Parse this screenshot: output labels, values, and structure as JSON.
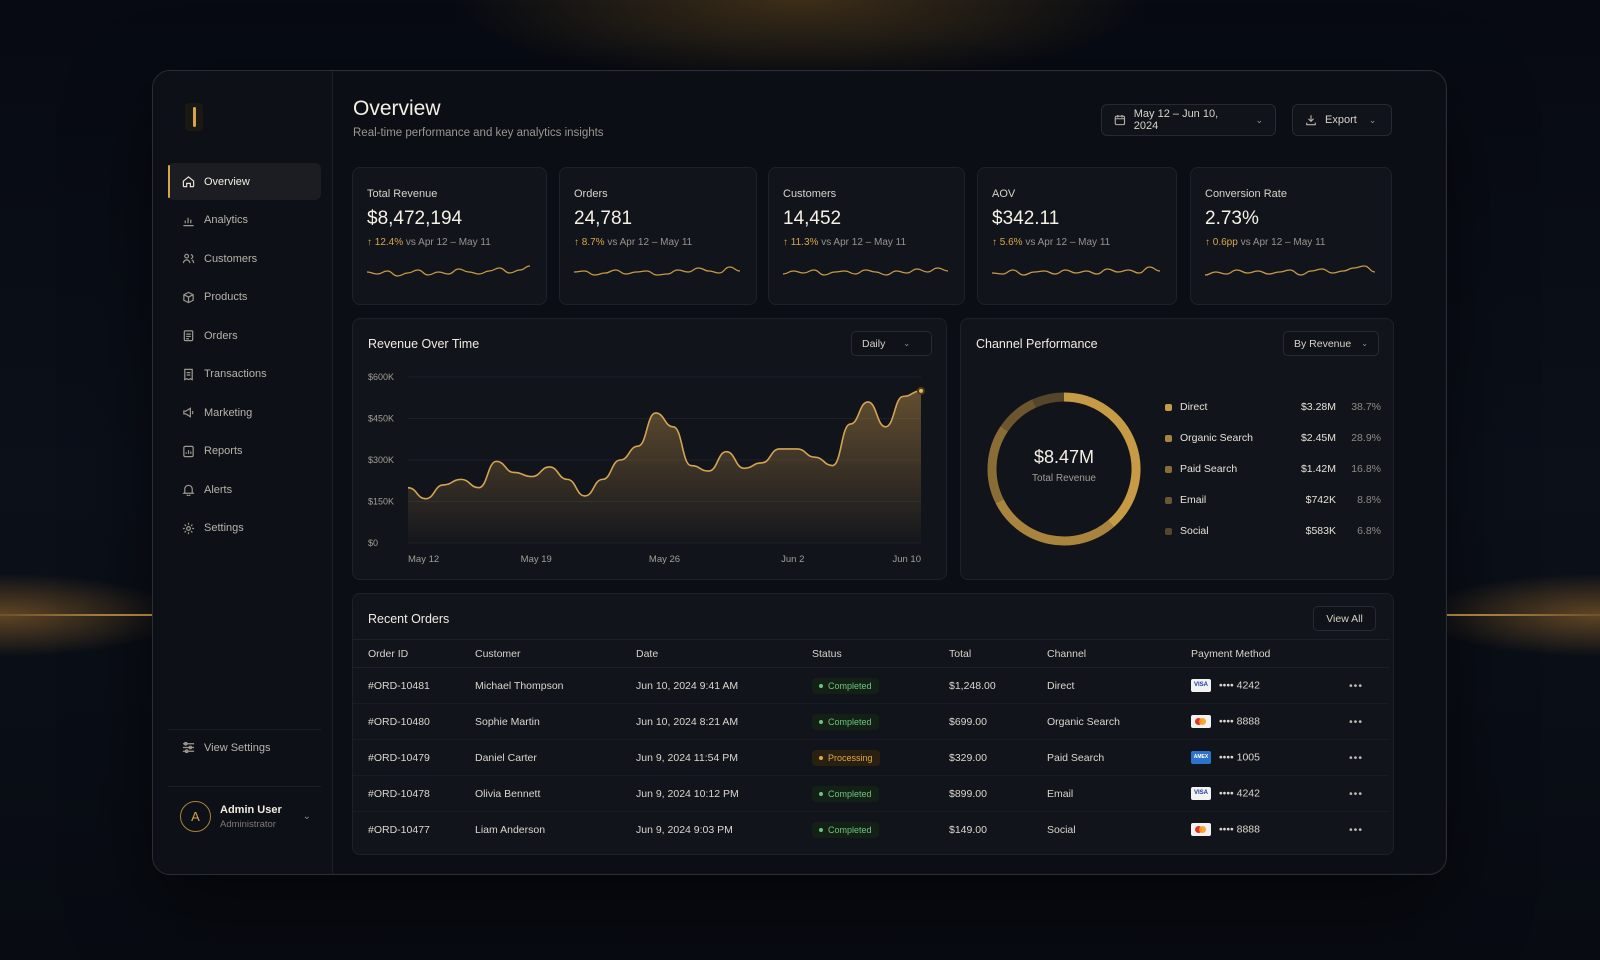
{
  "colors": {
    "accent": "#d7a548",
    "background": "#0b0e14",
    "card": "#11141b",
    "success": "#6ec47e",
    "warning": "#e0a64a"
  },
  "sidebar": {
    "items": [
      {
        "label": "Overview",
        "icon": "home-icon",
        "active": true
      },
      {
        "label": "Analytics",
        "icon": "analytics-icon"
      },
      {
        "label": "Customers",
        "icon": "users-icon"
      },
      {
        "label": "Products",
        "icon": "box-icon"
      },
      {
        "label": "Orders",
        "icon": "clipboard-icon"
      },
      {
        "label": "Transactions",
        "icon": "receipt-icon"
      },
      {
        "label": "Marketing",
        "icon": "megaphone-icon"
      },
      {
        "label": "Reports",
        "icon": "report-icon"
      },
      {
        "label": "Alerts",
        "icon": "bell-icon"
      },
      {
        "label": "Settings",
        "icon": "gear-icon"
      }
    ],
    "view_settings": "View Settings",
    "user": {
      "initial": "A",
      "name": "Admin User",
      "role": "Administrator"
    }
  },
  "header": {
    "title": "Overview",
    "subtitle": "Real-time performance and key analytics insights",
    "date_range": "May 12 – Jun 10, 2024",
    "export_label": "Export"
  },
  "kpis": [
    {
      "label": "Total Revenue",
      "value": "$8,472,194",
      "delta": "12.4%",
      "compare": "vs Apr 12 – May 11"
    },
    {
      "label": "Orders",
      "value": "24,781",
      "delta": "8.7%",
      "compare": "vs Apr 12 – May 11"
    },
    {
      "label": "Customers",
      "value": "14,452",
      "delta": "11.3%",
      "compare": "vs Apr 12 – May 11"
    },
    {
      "label": "AOV",
      "value": "$342.11",
      "delta": "5.6%",
      "compare": "vs Apr 12 – May 11"
    },
    {
      "label": "Conversion Rate",
      "value": "2.73%",
      "delta": "0.6pp",
      "compare": "vs Apr 12 – May 11"
    }
  ],
  "revenue": {
    "title": "Revenue Over Time",
    "granularity": "Daily"
  },
  "channel": {
    "title": "Channel Performance",
    "sort": "By Revenue",
    "total_value": "$8.47M",
    "total_label": "Total Revenue",
    "rows": [
      {
        "name": "Direct",
        "amount": "$3.28M",
        "pct": "38.7%",
        "color": "#c79a45"
      },
      {
        "name": "Organic Search",
        "amount": "$2.45M",
        "pct": "28.9%",
        "color": "#a9843f"
      },
      {
        "name": "Paid Search",
        "amount": "$1.42M",
        "pct": "16.8%",
        "color": "#8a6d36"
      },
      {
        "name": "Email",
        "amount": "$742K",
        "pct": "8.8%",
        "color": "#6b5630"
      },
      {
        "name": "Social",
        "amount": "$583K",
        "pct": "6.8%",
        "color": "#54452b"
      }
    ]
  },
  "orders": {
    "title": "Recent Orders",
    "view_all": "View All",
    "columns": [
      "Order ID",
      "Customer",
      "Date",
      "Status",
      "Total",
      "Channel",
      "Payment Method"
    ],
    "rows": [
      {
        "id": "#ORD-10481",
        "customer": "Michael Thompson",
        "date": "Jun 10, 2024 9:41 AM",
        "status": "Completed",
        "total": "$1,248.00",
        "channel": "Direct",
        "card": "visa",
        "card_label": "VISA",
        "last4": "•••• 4242"
      },
      {
        "id": "#ORD-10480",
        "customer": "Sophie Martin",
        "date": "Jun 10, 2024 8:21 AM",
        "status": "Completed",
        "total": "$699.00",
        "channel": "Organic Search",
        "card": "mc",
        "card_label": "",
        "last4": "•••• 8888"
      },
      {
        "id": "#ORD-10479",
        "customer": "Daniel Carter",
        "date": "Jun 9, 2024 11:54 PM",
        "status": "Processing",
        "total": "$329.00",
        "channel": "Paid Search",
        "card": "amex",
        "card_label": "AMEX",
        "last4": "•••• 1005"
      },
      {
        "id": "#ORD-10478",
        "customer": "Olivia Bennett",
        "date": "Jun 9, 2024 10:12 PM",
        "status": "Completed",
        "total": "$899.00",
        "channel": "Email",
        "card": "visa",
        "card_label": "VISA",
        "last4": "•••• 4242"
      },
      {
        "id": "#ORD-10477",
        "customer": "Liam Anderson",
        "date": "Jun 9, 2024 9:03 PM",
        "status": "Completed",
        "total": "$149.00",
        "channel": "Social",
        "card": "mc",
        "card_label": "",
        "last4": "•••• 8888"
      }
    ]
  },
  "chart_data": [
    {
      "type": "area",
      "title": "Revenue Over Time",
      "x_ticks": [
        "May 12",
        "May 19",
        "May 26",
        "Jun 2",
        "Jun 10"
      ],
      "y_ticks": [
        "$0",
        "$150K",
        "$300K",
        "$450K",
        "$600K"
      ],
      "ylim": [
        0,
        600000
      ],
      "series": [
        {
          "name": "Revenue",
          "x": [
            "May 12",
            "May 13",
            "May 14",
            "May 15",
            "May 16",
            "May 17",
            "May 18",
            "May 19",
            "May 20",
            "May 21",
            "May 22",
            "May 23",
            "May 24",
            "May 25",
            "May 26",
            "May 27",
            "May 28",
            "May 29",
            "May 30",
            "May 31",
            "Jun 1",
            "Jun 2",
            "Jun 3",
            "Jun 4",
            "Jun 5",
            "Jun 6",
            "Jun 7",
            "Jun 8",
            "Jun 9",
            "Jun 10"
          ],
          "values": [
            200000,
            160000,
            210000,
            230000,
            200000,
            295000,
            255000,
            240000,
            275000,
            230000,
            170000,
            230000,
            300000,
            350000,
            470000,
            420000,
            280000,
            260000,
            330000,
            270000,
            290000,
            340000,
            340000,
            310000,
            280000,
            430000,
            510000,
            420000,
            530000,
            550000
          ]
        }
      ]
    },
    {
      "type": "pie",
      "title": "Channel Performance",
      "categories": [
        "Direct",
        "Organic Search",
        "Paid Search",
        "Email",
        "Social"
      ],
      "values": [
        38.7,
        28.9,
        16.8,
        8.8,
        6.8
      ]
    }
  ]
}
